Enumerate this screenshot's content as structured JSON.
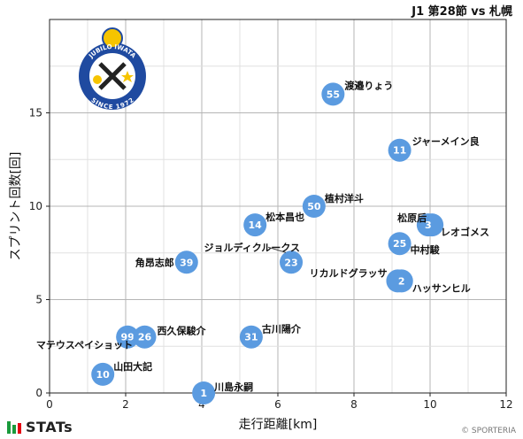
{
  "header": {
    "title": "J1 第28節 vs 札幌"
  },
  "footer": {
    "brand": "STATs",
    "copyright": "© SPORTERIA",
    "brand_colors": [
      "#1a9b3c",
      "#e60012"
    ]
  },
  "logo": {
    "text_top": "JUBILO IWATA",
    "text_bottom": "SINCE 1972"
  },
  "colors": {
    "marker": "#5b9be0",
    "marker_text": "#ffffff",
    "grid": "#bfbfbf",
    "axis": "#222222"
  },
  "chart_data": {
    "type": "scatter",
    "xlabel": "走行距離[km]",
    "ylabel": "スプリント回数[回]",
    "xlim": [
      0,
      12
    ],
    "ylim": [
      0,
      20
    ],
    "xticks": [
      0,
      2,
      4,
      6,
      8,
      10,
      12
    ],
    "yticks": [
      0,
      5,
      10,
      15
    ],
    "grid": true,
    "points": [
      {
        "number": "55",
        "name": "渡邉りょう",
        "x": 7.45,
        "y": 16
      },
      {
        "number": "11",
        "name": "ジャーメイン良",
        "x": 9.2,
        "y": 13
      },
      {
        "number": "50",
        "name": "植村洋斗",
        "x": 6.95,
        "y": 10
      },
      {
        "number": "14",
        "name": "松本昌也",
        "x": 5.4,
        "y": 9
      },
      {
        "number": "16",
        "name": "松原后",
        "x": 10.05,
        "y": 9
      },
      {
        "number": "3",
        "name": "",
        "x": 9.95,
        "y": 9
      },
      {
        "number": "",
        "name": "レオゴメス",
        "x": 10.0,
        "y": 9
      },
      {
        "number": "25",
        "name": "中村駿",
        "x": 9.2,
        "y": 8
      },
      {
        "number": "39",
        "name": "角昂志郎",
        "x": 3.6,
        "y": 7
      },
      {
        "number": "23",
        "name": "ジョルディクルークス",
        "x": 6.35,
        "y": 7
      },
      {
        "number": "",
        "name": "リカルドグラッサ",
        "x": 9.2,
        "y": 6
      },
      {
        "number": "36",
        "name": "",
        "x": 9.15,
        "y": 6
      },
      {
        "number": "2",
        "name": "ハッサンヒル",
        "x": 9.25,
        "y": 6
      },
      {
        "number": "99",
        "name": "マテウスペイショット",
        "x": 2.05,
        "y": 3
      },
      {
        "number": "26",
        "name": "西久保駿介",
        "x": 2.5,
        "y": 3
      },
      {
        "number": "31",
        "name": "古川陽介",
        "x": 5.3,
        "y": 3
      },
      {
        "number": "10",
        "name": "山田大記",
        "x": 1.4,
        "y": 1
      },
      {
        "number": "1",
        "name": "川島永嗣",
        "x": 4.05,
        "y": 0
      }
    ]
  }
}
